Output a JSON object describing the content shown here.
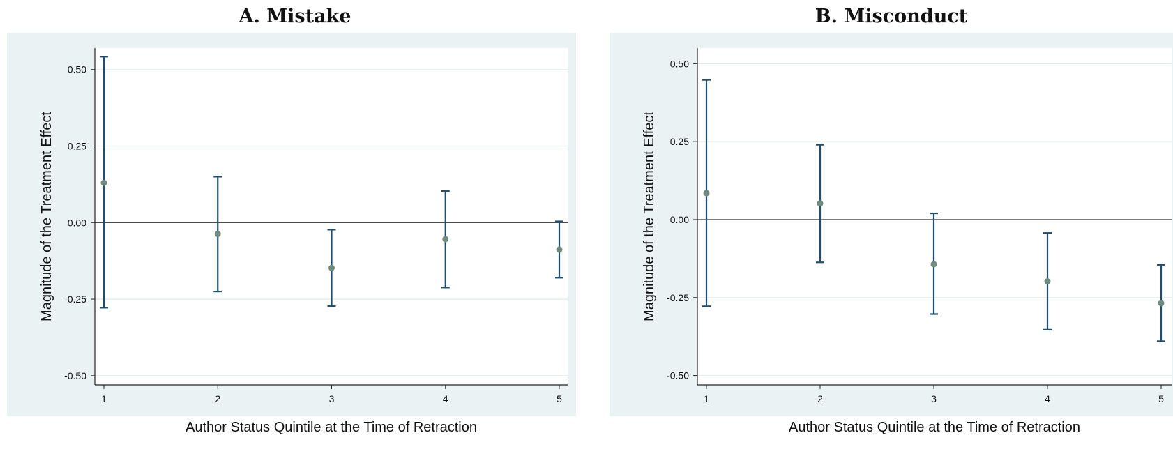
{
  "panels": [
    {
      "title": "A. Mistake",
      "chart_data": {
        "type": "scatter",
        "xlabel": "Author Status Quintile at the Time of Retraction",
        "ylabel": "Magnitude of the Treatment Effect",
        "x_ticks": [
          1,
          2,
          3,
          4,
          5
        ],
        "y_ticks": [
          "0.50",
          "0.25",
          "0.00",
          "-0.25",
          "-0.50"
        ],
        "ylim": [
          -0.53,
          0.57
        ],
        "points": [
          {
            "x": 1,
            "y": 0.13,
            "lo": -0.278,
            "hi": 0.542
          },
          {
            "x": 2,
            "y": -0.037,
            "lo": -0.225,
            "hi": 0.15
          },
          {
            "x": 3,
            "y": -0.148,
            "lo": -0.273,
            "hi": -0.023
          },
          {
            "x": 4,
            "y": -0.054,
            "lo": -0.212,
            "hi": 0.103
          },
          {
            "x": 5,
            "y": -0.088,
            "lo": -0.18,
            "hi": 0.004
          }
        ],
        "reference_line": 0,
        "grid": true,
        "colors": {
          "bar": "#1f4e70",
          "point": "#6f8b7d",
          "outer_bg": "#eaf2f3",
          "plot_bg": "#ffffff",
          "grid": "#e4ecee"
        }
      }
    },
    {
      "title": "B. Misconduct",
      "chart_data": {
        "type": "scatter",
        "xlabel": "Author Status Quintile at the Time of Retraction",
        "ylabel": "Magnitude of the Treatment Effect",
        "x_ticks": [
          1,
          2,
          3,
          4,
          5
        ],
        "y_ticks": [
          "0.50",
          "0.25",
          "0.00",
          "-0.25",
          "-0.50"
        ],
        "ylim": [
          -0.53,
          0.55
        ],
        "points": [
          {
            "x": 1,
            "y": 0.085,
            "lo": -0.278,
            "hi": 0.448
          },
          {
            "x": 2,
            "y": 0.052,
            "lo": -0.137,
            "hi": 0.24
          },
          {
            "x": 3,
            "y": -0.143,
            "lo": -0.303,
            "hi": 0.02
          },
          {
            "x": 4,
            "y": -0.198,
            "lo": -0.353,
            "hi": -0.043
          },
          {
            "x": 5,
            "y": -0.268,
            "lo": -0.39,
            "hi": -0.145
          }
        ],
        "reference_line": 0,
        "grid": true,
        "colors": {
          "bar": "#1f4e70",
          "point": "#6f8b7d",
          "outer_bg": "#eaf2f3",
          "plot_bg": "#ffffff",
          "grid": "#e4ecee"
        }
      }
    }
  ]
}
